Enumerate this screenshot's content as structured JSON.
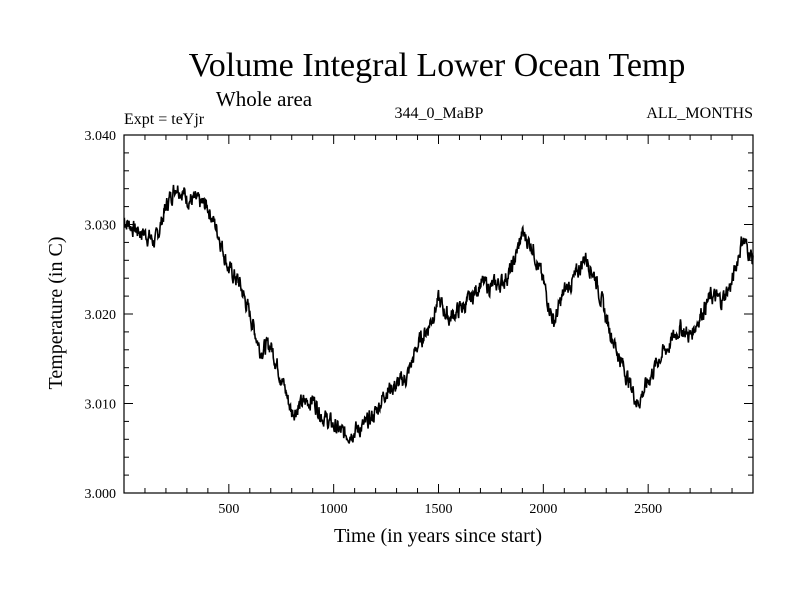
{
  "chart_data": {
    "type": "line",
    "title": "Volume Integral Lower Ocean Temp",
    "subtitle": "Whole area",
    "experiment": "Expt = teYjr",
    "period": "344_0_MaBP",
    "months": "ALL_MONTHS",
    "xlabel": "Time (in years since start)",
    "ylabel": "Temperature (in C)",
    "xlim": [
      0,
      3000
    ],
    "ylim": [
      3.0,
      3.04
    ],
    "xticks": [
      500,
      1000,
      1500,
      2000,
      2500
    ],
    "xtick_labels": [
      "500",
      "1000",
      "1500",
      "2000",
      "2500"
    ],
    "yticks": [
      3.0,
      3.01,
      3.02,
      3.03,
      3.04
    ],
    "ytick_labels": [
      "3.000",
      "3.010",
      "3.020",
      "3.030",
      "3.040"
    ],
    "grid": false,
    "series": [
      {
        "name": "Volume Integral Lower Ocean Temp",
        "color": "#000000",
        "x": [
          0,
          50,
          100,
          150,
          200,
          250,
          300,
          350,
          400,
          450,
          500,
          550,
          600,
          650,
          700,
          750,
          800,
          850,
          900,
          950,
          1000,
          1050,
          1100,
          1150,
          1200,
          1250,
          1300,
          1350,
          1400,
          1450,
          1500,
          1550,
          1600,
          1650,
          1700,
          1750,
          1800,
          1850,
          1900,
          1950,
          2000,
          2050,
          2100,
          2150,
          2200,
          2250,
          2300,
          2350,
          2400,
          2450,
          2500,
          2550,
          2600,
          2650,
          2700,
          2750,
          2800,
          2850,
          2900,
          2950,
          3000
        ],
        "values": [
          3.0305,
          3.0295,
          3.029,
          3.028,
          3.032,
          3.0345,
          3.033,
          3.0325,
          3.032,
          3.029,
          3.025,
          3.0235,
          3.02,
          3.016,
          3.0165,
          3.013,
          3.009,
          3.01,
          3.0105,
          3.0085,
          3.0075,
          3.0065,
          3.007,
          3.0075,
          3.009,
          3.0115,
          3.012,
          3.013,
          3.0165,
          3.0185,
          3.0215,
          3.0195,
          3.0205,
          3.0215,
          3.0235,
          3.023,
          3.0235,
          3.025,
          3.029,
          3.0275,
          3.0235,
          3.019,
          3.0225,
          3.024,
          3.0265,
          3.024,
          3.0195,
          3.016,
          3.013,
          3.01,
          3.0125,
          3.015,
          3.0165,
          3.0185,
          3.0175,
          3.02,
          3.022,
          3.0215,
          3.0235,
          3.0285,
          3.026
        ]
      }
    ]
  }
}
